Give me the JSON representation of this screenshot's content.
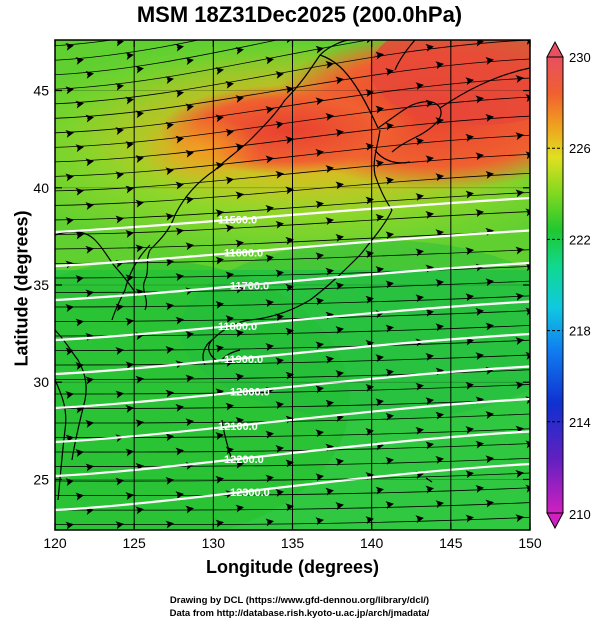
{
  "title": "MSM 18Z31Dec2025 (200.0hPa)",
  "axes": {
    "xlabel": "Longitude (degrees)",
    "ylabel": "Latitude  (degrees)",
    "x_ticks": [
      "120",
      "125",
      "130",
      "135",
      "140",
      "145",
      "150"
    ],
    "y_ticks": [
      "25",
      "30",
      "35",
      "40",
      "45"
    ],
    "x_range": [
      120,
      150
    ],
    "y_range": [
      22.4,
      47.6
    ]
  },
  "colorbar": {
    "ticks": [
      "230",
      "226",
      "222",
      "218",
      "214",
      "210"
    ],
    "min": 210,
    "max": 230,
    "colors": [
      "#c020c0",
      "#3020c0",
      "#1060f0",
      "#10c8e8",
      "#10d880",
      "#20c830",
      "#60d020",
      "#c8e020",
      "#f0d020",
      "#f08030",
      "#e84030",
      "#e86070"
    ]
  },
  "contours": {
    "labels": [
      "11500.0",
      "11600.0",
      "11700.0",
      "11800.0",
      "11900.0",
      "12000.0",
      "12100.0",
      "12200.0",
      "12300.0"
    ],
    "color": "#ffffff"
  },
  "credits": {
    "line1": "Drawing by DCL (https://www.gfd-dennou.org/library/dcl/)",
    "line2": "Data from http://database.rish.kyoto-u.ac.jp/arch/jmadata/"
  }
}
